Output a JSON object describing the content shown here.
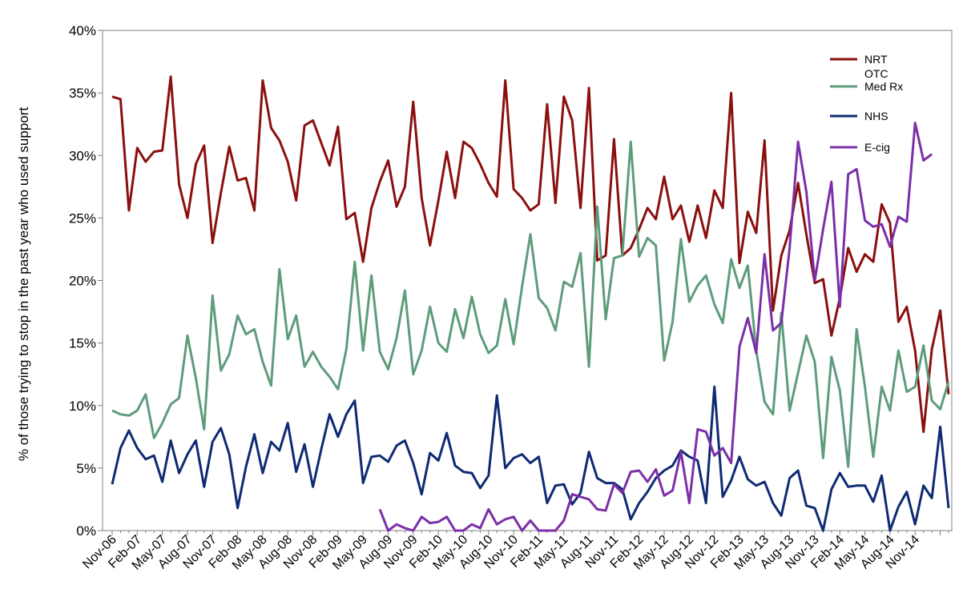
{
  "chart_data": {
    "type": "line",
    "title": "",
    "xlabel": "",
    "ylabel": "% of those trying to stop in the past year who used support",
    "ylim": [
      0,
      40
    ],
    "yticks": [
      "0%",
      "5%",
      "10%",
      "15%",
      "20%",
      "25%",
      "30%",
      "35%",
      "40%"
    ],
    "xticks": [
      "Nov-06",
      "Feb-07",
      "May-07",
      "Aug-07",
      "Nov-07",
      "Feb-08",
      "May-08",
      "Aug-08",
      "Nov-08",
      "Feb-09",
      "May-09",
      "Aug-09",
      "Nov-09",
      "Feb-10",
      "May-10",
      "Aug-10",
      "Nov-10",
      "Feb-11",
      "May-11",
      "Aug-11",
      "Nov-11",
      "Feb-12",
      "May-12",
      "Aug-12",
      "Nov-12",
      "Feb-13",
      "May-13",
      "Aug-13",
      "Nov-13",
      "Feb-14",
      "May-14",
      "Aug-14",
      "Nov-14"
    ],
    "grid": false,
    "legend_position": "top-right",
    "series": [
      {
        "name": "NRT OTC",
        "legend_lines": [
          "NRT",
          "OTC"
        ],
        "color": "#8B0F0F",
        "values": [
          34.7,
          34.5,
          25.6,
          30.6,
          29.5,
          30.3,
          30.4,
          36.3,
          27.7,
          25.0,
          29.3,
          30.8,
          23.0,
          27.0,
          30.7,
          28.0,
          28.2,
          25.6,
          36.0,
          32.2,
          31.2,
          29.5,
          26.4,
          32.4,
          32.8,
          31.0,
          29.2,
          32.3,
          24.9,
          25.4,
          21.5,
          25.8,
          27.9,
          29.6,
          25.9,
          27.5,
          34.3,
          26.6,
          22.8,
          26.4,
          30.3,
          26.6,
          31.1,
          30.6,
          29.3,
          27.8,
          26.7,
          36.0,
          27.3,
          26.6,
          25.6,
          26.1,
          34.1,
          26.2,
          34.7,
          32.8,
          25.8,
          35.4,
          21.6,
          22.0,
          31.3,
          22.0,
          22.6,
          24.1,
          25.8,
          24.9,
          28.3,
          24.9,
          26.0,
          23.1,
          26.0,
          23.4,
          27.2,
          25.8,
          35.0,
          21.4,
          25.5,
          23.8,
          31.2,
          17.6,
          22.0,
          24.0,
          27.8,
          23.7,
          19.8,
          20.1,
          15.6,
          18.6,
          22.6,
          20.7,
          22.1,
          21.5,
          26.1,
          24.6,
          16.7,
          17.9,
          14.4,
          7.9,
          14.5,
          17.6,
          10.9
        ]
      },
      {
        "name": "Med Rx",
        "color": "#5E9C7C",
        "values": [
          9.6,
          9.3,
          9.2,
          9.6,
          10.9,
          7.4,
          8.6,
          10.1,
          10.6,
          15.6,
          12.2,
          8.1,
          18.8,
          12.8,
          14.1,
          17.2,
          15.7,
          16.1,
          13.5,
          11.6,
          20.9,
          15.3,
          17.2,
          13.1,
          14.3,
          13.1,
          12.3,
          11.3,
          14.5,
          21.5,
          14.4,
          20.4,
          14.3,
          12.9,
          15.4,
          19.2,
          12.5,
          14.4,
          17.9,
          15.0,
          14.3,
          17.7,
          15.4,
          18.7,
          15.7,
          14.2,
          14.8,
          18.5,
          14.9,
          19.5,
          23.7,
          18.6,
          17.8,
          16.0,
          19.9,
          19.5,
          22.2,
          13.1,
          25.9,
          16.9,
          21.8,
          22.0,
          31.1,
          21.9,
          23.4,
          22.8,
          13.6,
          16.7,
          23.3,
          18.3,
          19.6,
          20.4,
          18.1,
          16.6,
          21.7,
          19.4,
          21.2,
          14.4,
          10.3,
          9.3,
          17.4,
          9.6,
          12.6,
          15.6,
          13.5,
          5.8,
          13.9,
          11.2,
          5.1,
          16.1,
          11.5,
          5.9,
          11.5,
          9.6,
          14.4,
          11.1,
          11.5,
          14.8,
          10.4,
          9.7,
          11.9
        ]
      },
      {
        "name": "NHS",
        "color": "#0E2A72",
        "values": [
          3.7,
          6.6,
          8.0,
          6.6,
          5.7,
          6.0,
          3.9,
          7.2,
          4.6,
          6.1,
          7.2,
          3.5,
          7.1,
          8.2,
          6.1,
          1.8,
          5.1,
          7.7,
          4.6,
          7.1,
          6.4,
          8.6,
          4.7,
          6.9,
          3.5,
          6.5,
          9.3,
          7.5,
          9.3,
          10.4,
          3.8,
          5.9,
          6.0,
          5.5,
          6.8,
          7.2,
          5.4,
          2.9,
          6.2,
          5.6,
          7.8,
          5.2,
          4.7,
          4.6,
          3.4,
          4.4,
          10.8,
          5.0,
          5.8,
          6.1,
          5.4,
          5.9,
          2.2,
          3.6,
          3.7,
          2.1,
          3.0,
          6.3,
          4.2,
          3.8,
          3.8,
          3.3,
          0.9,
          2.2,
          3.1,
          4.2,
          4.8,
          5.2,
          6.4,
          5.9,
          5.6,
          2.2,
          11.5,
          2.7,
          4.0,
          5.9,
          4.1,
          3.6,
          3.9,
          2.2,
          1.2,
          4.2,
          4.8,
          2.0,
          1.8,
          0.0,
          3.3,
          4.6,
          3.5,
          3.6,
          3.6,
          2.3,
          4.4,
          0.0,
          1.9,
          3.1,
          0.5,
          3.6,
          2.6,
          8.3,
          1.8
        ]
      },
      {
        "name": "E-cig",
        "color": "#7B2FA8",
        "values": [
          null,
          null,
          null,
          null,
          null,
          null,
          null,
          null,
          null,
          null,
          null,
          null,
          null,
          null,
          null,
          null,
          null,
          null,
          null,
          null,
          null,
          null,
          null,
          null,
          null,
          null,
          null,
          null,
          null,
          null,
          null,
          null,
          1.7,
          0.0,
          0.5,
          0.2,
          0.0,
          1.1,
          0.6,
          0.7,
          1.1,
          0.0,
          0.0,
          0.5,
          0.2,
          1.7,
          0.5,
          0.9,
          1.1,
          0.0,
          0.8,
          0.0,
          0.0,
          0.0,
          0.8,
          2.9,
          2.7,
          2.5,
          1.7,
          1.6,
          3.7,
          3.0,
          4.7,
          4.8,
          3.9,
          4.9,
          2.8,
          3.2,
          6.3,
          2.2,
          8.1,
          7.9,
          6.0,
          6.6,
          5.4,
          14.7,
          17.0,
          14.2,
          22.1,
          16.0,
          16.6,
          22.6,
          31.1,
          27.1,
          20.0,
          24.1,
          27.9,
          17.9,
          28.5,
          28.9,
          24.8,
          24.3,
          24.5,
          22.7,
          25.1,
          24.7,
          32.6,
          29.6,
          30.1
        ]
      }
    ]
  }
}
